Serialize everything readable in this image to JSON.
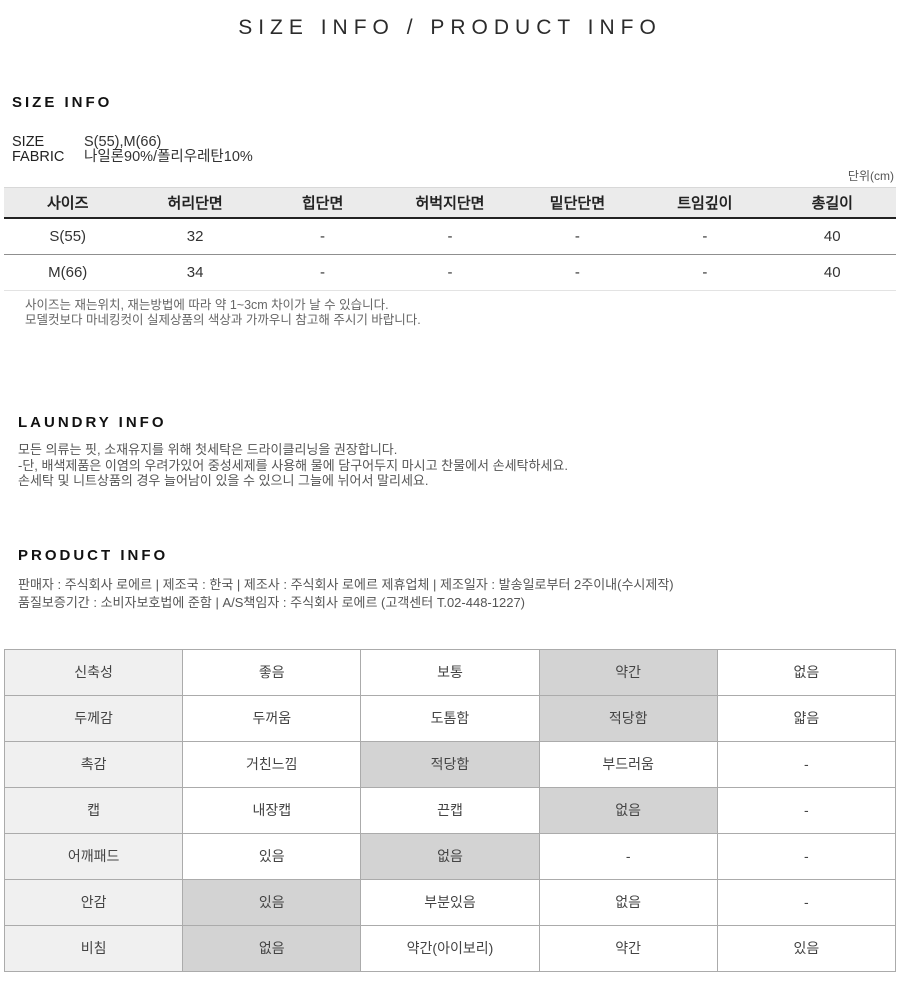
{
  "page_title": "SIZE INFO / PRODUCT INFO",
  "size_info": {
    "heading": "SIZE INFO",
    "specs": [
      {
        "label": "SIZE",
        "value": "S(55),M(66)"
      },
      {
        "label": "FABRIC",
        "value": "나일론90%/폴리우레탄10%"
      }
    ],
    "unit_note": "단위(cm)",
    "table": {
      "headers": [
        "사이즈",
        "허리단면",
        "힙단면",
        "허벅지단면",
        "밑단단면",
        "트임깊이",
        "총길이"
      ],
      "rows": [
        [
          "S(55)",
          "32",
          "-",
          "-",
          "-",
          "-",
          "40"
        ],
        [
          "M(66)",
          "34",
          "-",
          "-",
          "-",
          "-",
          "40"
        ]
      ]
    },
    "notes": [
      "사이즈는 재는위치, 재는방법에 따라 약 1~3cm 차이가 날 수 있습니다.",
      "모델컷보다 마네킹컷이 실제상품의 색상과 가까우니 참고해 주시기 바랍니다."
    ]
  },
  "laundry_info": {
    "heading": "LAUNDRY INFO",
    "lines": [
      "모든 의류는 핏, 소재유지를 위해 첫세탁은 드라이클리닝을 권장합니다.",
      "-단, 배색제품은 이염의 우려가있어 중성세제를 사용해 물에 담구어두지 마시고 찬물에서 손세탁하세요.",
      "손세탁 및 니트상품의 경우 늘어남이 있을 수 있으니 그늘에 뉘어서 말리세요."
    ]
  },
  "product_info": {
    "heading": "PRODUCT INFO",
    "lines": [
      "판매자 : 주식회사 로에르 | 제조국 : 한국 | 제조사 : 주식회사 로에르 제휴업체 | 제조일자 : 발송일로부터 2주이내(수시제작)",
      "품질보증기간 : 소비자보호법에 준함 | A/S책임자 : 주식회사 로에르 (고객센터 T.02-448-1227)"
    ]
  },
  "attributes_table": {
    "rows": [
      {
        "label": "신축성",
        "options": [
          "좋음",
          "보통",
          "약간",
          "없음"
        ],
        "selected": 2
      },
      {
        "label": "두께감",
        "options": [
          "두꺼움",
          "도톰함",
          "적당함",
          "얇음"
        ],
        "selected": 2
      },
      {
        "label": "촉감",
        "options": [
          "거친느낌",
          "적당함",
          "부드러움",
          "-"
        ],
        "selected": 1
      },
      {
        "label": "캡",
        "options": [
          "내장캡",
          "끈캡",
          "없음",
          "-"
        ],
        "selected": 2
      },
      {
        "label": "어깨패드",
        "options": [
          "있음",
          "없음",
          "-",
          "-"
        ],
        "selected": 1
      },
      {
        "label": "안감",
        "options": [
          "있음",
          "부분있음",
          "없음",
          "-"
        ],
        "selected": 0
      },
      {
        "label": "비침",
        "options": [
          "없음",
          "약간(아이보리)",
          "약간",
          "있음"
        ],
        "selected": 0
      }
    ]
  },
  "colors": {
    "size_header_bg": "#ebebeb",
    "size_header_border": "#222222",
    "attr_label_bg": "#f0f0f0",
    "attr_selected_bg": "#d3d3d3",
    "attr_border": "#ababab",
    "note_text": "#666666"
  }
}
